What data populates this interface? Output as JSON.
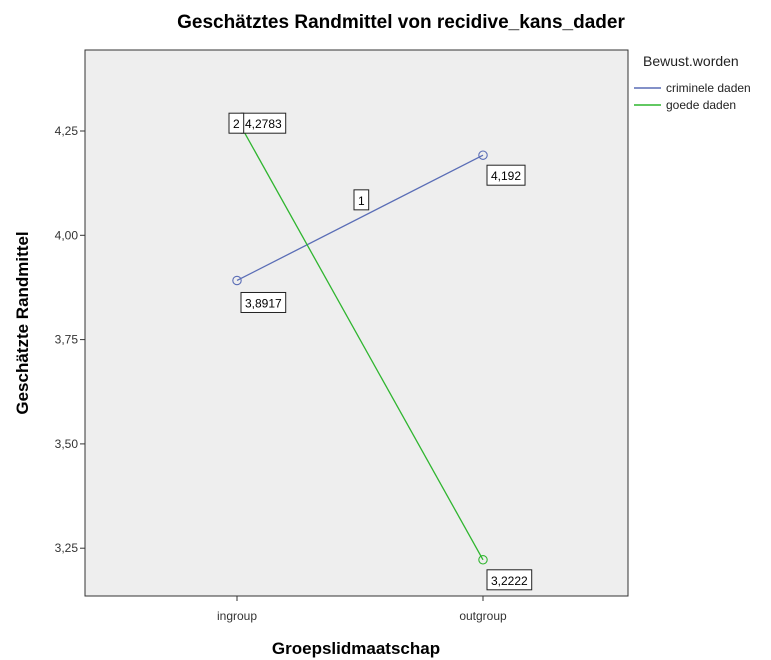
{
  "chart_data": {
    "type": "line",
    "title": "Geschätztes Randmittel von recidive_kans_dader",
    "xlabel": "Groepslidmaatschap",
    "ylabel": "Geschätzte Randmittel",
    "categories": [
      "ingroup",
      "outgroup"
    ],
    "ylim": [
      3.15,
      4.5
    ],
    "yticks": [
      3.25,
      3.5,
      3.75,
      4.0,
      4.25
    ],
    "ytick_labels": [
      "3,25",
      "3,50",
      "3,75",
      "4,00",
      "4,25"
    ],
    "grid": false,
    "legend": {
      "title": "Bewust.worden",
      "placement": "right"
    },
    "series": [
      {
        "name": "criminele daden",
        "marker_label": "1",
        "color": "#5a6db6",
        "values": [
          3.8917,
          4.192
        ],
        "value_labels": [
          "3,8917",
          "4,192"
        ]
      },
      {
        "name": "goede daden",
        "marker_label": "2",
        "color": "#2fb52f",
        "values": [
          4.2783,
          3.2222
        ],
        "value_labels": [
          "4,2783",
          "3,2222"
        ]
      }
    ]
  }
}
